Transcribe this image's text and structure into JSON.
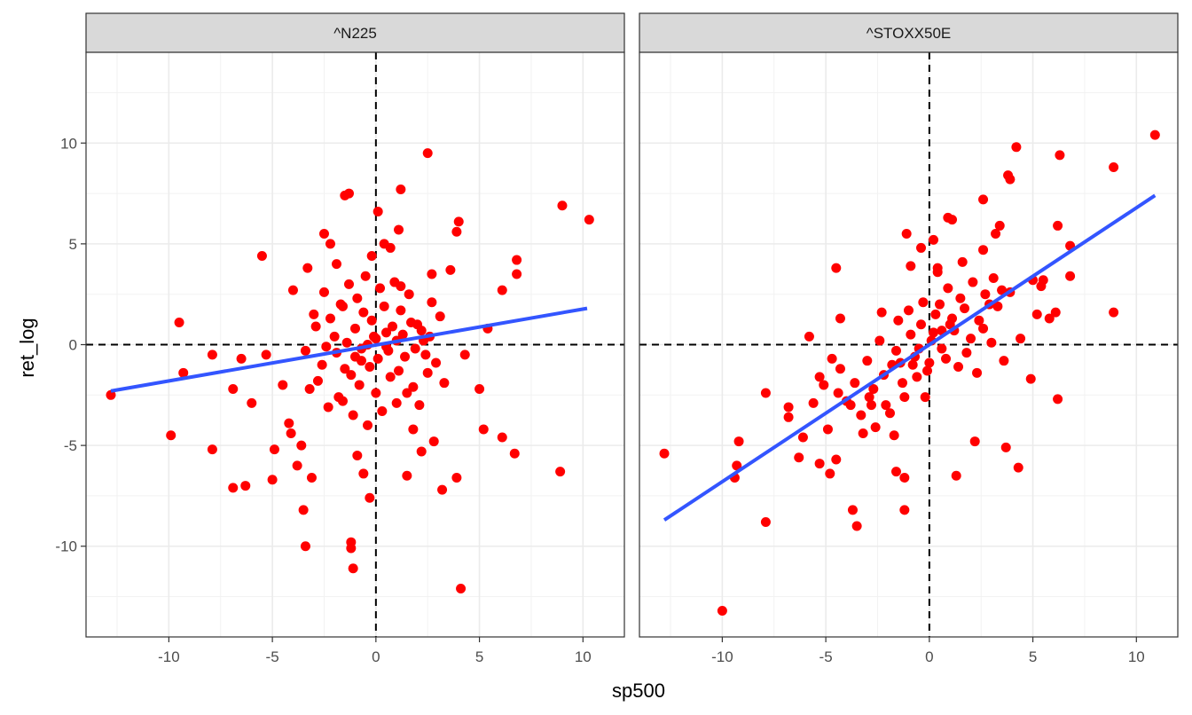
{
  "chart_data": {
    "type": "scatter",
    "title": "",
    "xlabel": "sp500",
    "ylabel": "ret_log",
    "xlim": [
      -14,
      12
    ],
    "ylim": [
      -14.5,
      14.5
    ],
    "x_ticks": [
      -10,
      -5,
      0,
      5,
      10
    ],
    "y_ticks": [
      -10,
      -5,
      0,
      5,
      10
    ],
    "x_tick_labels": [
      "-10",
      "-5",
      "0",
      "5",
      "10"
    ],
    "y_tick_labels": [
      "-10",
      "-5",
      "0",
      "5",
      "10"
    ],
    "grid": true,
    "reference_lines": {
      "x": 0,
      "y": 0,
      "style": "dashed"
    },
    "colors": {
      "points": "#ff0000",
      "fit": "#3355ff",
      "strip": "#d9d9d9",
      "grid": "#ebebeb"
    },
    "panels": [
      {
        "name": "^N225",
        "fit_line": [
          [
            -12.8,
            -2.3
          ],
          [
            10.2,
            1.8
          ]
        ],
        "points": [
          [
            -12.8,
            -2.5
          ],
          [
            -9.9,
            -4.5
          ],
          [
            -9.5,
            1.1
          ],
          [
            -9.3,
            -1.4
          ],
          [
            -7.9,
            -0.5
          ],
          [
            -7.9,
            -5.2
          ],
          [
            -6.9,
            -2.2
          ],
          [
            -6.9,
            -7.1
          ],
          [
            -6.5,
            -0.7
          ],
          [
            -6.3,
            -7.0
          ],
          [
            -6.0,
            -2.9
          ],
          [
            -5.5,
            4.4
          ],
          [
            -5.3,
            -0.5
          ],
          [
            -5.0,
            -6.7
          ],
          [
            -4.9,
            -5.2
          ],
          [
            -4.5,
            -2.0
          ],
          [
            -4.2,
            -3.9
          ],
          [
            -4.1,
            -4.4
          ],
          [
            -4.0,
            2.7
          ],
          [
            -3.8,
            -6.0
          ],
          [
            -3.6,
            -5.0
          ],
          [
            -3.5,
            -8.2
          ],
          [
            -3.4,
            -10.0
          ],
          [
            -3.3,
            3.8
          ],
          [
            -3.1,
            -6.6
          ],
          [
            -2.5,
            5.5
          ],
          [
            -2.2,
            5.0
          ],
          [
            -1.9,
            4.0
          ],
          [
            -1.5,
            7.4
          ],
          [
            -1.3,
            7.5
          ],
          [
            -1.2,
            -10.1
          ],
          [
            -1.2,
            -9.8
          ],
          [
            -1.1,
            -11.1
          ],
          [
            -0.9,
            -5.5
          ],
          [
            -0.6,
            -6.4
          ],
          [
            -0.3,
            -7.6
          ],
          [
            -0.2,
            4.4
          ],
          [
            0.1,
            6.6
          ],
          [
            0.4,
            5.0
          ],
          [
            0.7,
            4.8
          ],
          [
            1.1,
            5.7
          ],
          [
            1.2,
            7.7
          ],
          [
            1.5,
            -6.5
          ],
          [
            1.8,
            -4.2
          ],
          [
            2.2,
            -5.3
          ],
          [
            2.5,
            9.5
          ],
          [
            2.7,
            3.5
          ],
          [
            2.8,
            -4.8
          ],
          [
            3.2,
            -7.2
          ],
          [
            3.6,
            3.7
          ],
          [
            3.9,
            5.6
          ],
          [
            3.9,
            -6.6
          ],
          [
            4.0,
            6.1
          ],
          [
            4.1,
            -12.1
          ],
          [
            4.3,
            -0.5
          ],
          [
            5.0,
            -2.2
          ],
          [
            5.2,
            -4.2
          ],
          [
            5.4,
            0.8
          ],
          [
            6.1,
            -4.6
          ],
          [
            6.1,
            2.7
          ],
          [
            6.7,
            -5.4
          ],
          [
            6.8,
            4.2
          ],
          [
            6.8,
            3.5
          ],
          [
            8.9,
            -6.3
          ],
          [
            9.0,
            6.9
          ],
          [
            10.3,
            6.2
          ],
          [
            -3.0,
            1.5
          ],
          [
            -2.8,
            -1.8
          ],
          [
            -2.5,
            2.6
          ],
          [
            -2.3,
            -3.1
          ],
          [
            -2.0,
            0.4
          ],
          [
            -1.8,
            -2.6
          ],
          [
            -1.6,
            1.9
          ],
          [
            -1.5,
            -1.2
          ],
          [
            -1.3,
            3.0
          ],
          [
            -1.1,
            -3.5
          ],
          [
            -0.9,
            2.3
          ],
          [
            -0.7,
            -0.8
          ],
          [
            -0.5,
            3.4
          ],
          [
            -0.4,
            -4.0
          ],
          [
            -0.2,
            1.2
          ],
          [
            0.0,
            -2.4
          ],
          [
            0.2,
            2.8
          ],
          [
            0.3,
            -3.3
          ],
          [
            0.5,
            0.6
          ],
          [
            0.7,
            -1.6
          ],
          [
            0.9,
            3.1
          ],
          [
            1.0,
            -2.9
          ],
          [
            1.2,
            1.7
          ],
          [
            1.4,
            -0.6
          ],
          [
            1.6,
            2.5
          ],
          [
            1.8,
            -2.1
          ],
          [
            2.0,
            1.0
          ],
          [
            2.1,
            -3.0
          ],
          [
            2.3,
            0.2
          ],
          [
            2.5,
            -1.4
          ],
          [
            2.7,
            2.1
          ],
          [
            2.9,
            -0.9
          ],
          [
            3.1,
            1.4
          ],
          [
            3.3,
            -1.9
          ],
          [
            -3.4,
            -0.3
          ],
          [
            -3.2,
            -2.2
          ],
          [
            -2.9,
            0.9
          ],
          [
            -2.6,
            -1.0
          ],
          [
            -2.2,
            1.3
          ],
          [
            -1.9,
            -0.4
          ],
          [
            -1.7,
            2.0
          ],
          [
            -1.4,
            0.1
          ],
          [
            -1.2,
            -1.5
          ],
          [
            -1.0,
            0.8
          ],
          [
            -0.8,
            -2.0
          ],
          [
            -0.6,
            1.6
          ],
          [
            -0.3,
            -1.1
          ],
          [
            -0.1,
            0.4
          ],
          [
            0.1,
            -0.7
          ],
          [
            0.4,
            1.9
          ],
          [
            0.6,
            -0.3
          ],
          [
            0.8,
            0.9
          ],
          [
            1.1,
            -1.3
          ],
          [
            1.3,
            0.5
          ],
          [
            1.5,
            -2.4
          ],
          [
            1.7,
            1.1
          ],
          [
            1.9,
            -0.2
          ],
          [
            2.2,
            0.7
          ],
          [
            2.4,
            -0.5
          ],
          [
            -0.4,
            0.0
          ],
          [
            0.0,
            0.3
          ],
          [
            -0.7,
            -0.2
          ],
          [
            0.5,
            -0.1
          ],
          [
            -1.0,
            -0.6
          ],
          [
            1.0,
            0.2
          ],
          [
            -2.4,
            -0.1
          ],
          [
            2.6,
            0.4
          ],
          [
            -1.6,
            -2.8
          ],
          [
            1.2,
            2.9
          ]
        ]
      },
      {
        "name": "^STOXX50E",
        "fit_line": [
          [
            -12.8,
            -8.7
          ],
          [
            10.9,
            7.4
          ]
        ],
        "points": [
          [
            -12.8,
            -5.4
          ],
          [
            -10.0,
            -13.2
          ],
          [
            -9.4,
            -6.6
          ],
          [
            -9.3,
            -6.0
          ],
          [
            -9.2,
            -4.8
          ],
          [
            -7.9,
            -8.8
          ],
          [
            -7.9,
            -2.4
          ],
          [
            -6.8,
            -3.1
          ],
          [
            -6.8,
            -3.6
          ],
          [
            -6.3,
            -5.6
          ],
          [
            -6.1,
            -4.6
          ],
          [
            -5.8,
            0.4
          ],
          [
            -5.6,
            -2.9
          ],
          [
            -5.3,
            -1.6
          ],
          [
            -5.3,
            -5.9
          ],
          [
            -5.1,
            -2.0
          ],
          [
            -4.9,
            -4.2
          ],
          [
            -4.8,
            -6.4
          ],
          [
            -4.7,
            -0.7
          ],
          [
            -4.5,
            -5.7
          ],
          [
            -4.5,
            3.8
          ],
          [
            -4.4,
            -2.4
          ],
          [
            -4.3,
            -1.2
          ],
          [
            -4.3,
            1.3
          ],
          [
            -3.7,
            -8.2
          ],
          [
            -3.5,
            -9.0
          ],
          [
            -3.2,
            -4.4
          ],
          [
            -2.8,
            -3.0
          ],
          [
            -2.3,
            1.6
          ],
          [
            -1.6,
            -6.3
          ],
          [
            -1.2,
            -6.6
          ],
          [
            -1.2,
            -8.2
          ],
          [
            -1.1,
            5.5
          ],
          [
            -0.9,
            3.9
          ],
          [
            -0.4,
            4.8
          ],
          [
            0.2,
            5.2
          ],
          [
            0.4,
            3.6
          ],
          [
            0.9,
            6.3
          ],
          [
            1.1,
            6.2
          ],
          [
            1.3,
            -6.5
          ],
          [
            2.2,
            -4.8
          ],
          [
            2.6,
            7.2
          ],
          [
            2.6,
            4.7
          ],
          [
            3.1,
            3.3
          ],
          [
            3.2,
            5.5
          ],
          [
            3.4,
            5.9
          ],
          [
            3.7,
            -5.1
          ],
          [
            3.8,
            8.4
          ],
          [
            3.9,
            8.2
          ],
          [
            4.2,
            9.8
          ],
          [
            4.3,
            -6.1
          ],
          [
            4.4,
            0.3
          ],
          [
            4.9,
            -1.7
          ],
          [
            5.0,
            3.2
          ],
          [
            5.2,
            1.5
          ],
          [
            5.4,
            2.9
          ],
          [
            5.5,
            3.2
          ],
          [
            5.8,
            1.3
          ],
          [
            6.1,
            1.6
          ],
          [
            6.2,
            -2.7
          ],
          [
            6.2,
            5.9
          ],
          [
            6.3,
            9.4
          ],
          [
            6.8,
            4.9
          ],
          [
            6.8,
            3.4
          ],
          [
            8.9,
            1.6
          ],
          [
            8.9,
            8.8
          ],
          [
            10.9,
            10.4
          ],
          [
            -4.0,
            -2.8
          ],
          [
            -3.6,
            -1.9
          ],
          [
            -3.3,
            -3.5
          ],
          [
            -3.0,
            -0.8
          ],
          [
            -2.7,
            -2.2
          ],
          [
            -2.4,
            0.2
          ],
          [
            -2.1,
            -3.0
          ],
          [
            -1.8,
            -1.0
          ],
          [
            -1.5,
            1.2
          ],
          [
            -1.2,
            -2.6
          ],
          [
            -0.9,
            0.5
          ],
          [
            -0.6,
            -1.6
          ],
          [
            -0.3,
            2.1
          ],
          [
            0.0,
            -0.9
          ],
          [
            0.3,
            1.5
          ],
          [
            0.6,
            -0.2
          ],
          [
            0.9,
            2.8
          ],
          [
            1.2,
            0.7
          ],
          [
            1.5,
            2.3
          ],
          [
            1.8,
            -0.4
          ],
          [
            2.1,
            3.1
          ],
          [
            2.4,
            1.2
          ],
          [
            2.7,
            2.5
          ],
          [
            3.0,
            0.1
          ],
          [
            3.3,
            1.9
          ],
          [
            3.6,
            -0.8
          ],
          [
            3.9,
            2.6
          ],
          [
            -2.6,
            -4.1
          ],
          [
            -2.2,
            -1.5
          ],
          [
            -1.9,
            -3.4
          ],
          [
            -1.6,
            -0.3
          ],
          [
            -1.3,
            -1.9
          ],
          [
            -1.0,
            1.7
          ],
          [
            -0.7,
            -0.6
          ],
          [
            -0.4,
            1.0
          ],
          [
            -0.1,
            -1.3
          ],
          [
            0.2,
            0.6
          ],
          [
            0.5,
            2.0
          ],
          [
            0.8,
            -0.7
          ],
          [
            1.1,
            1.3
          ],
          [
            1.4,
            -1.1
          ],
          [
            1.7,
            1.8
          ],
          [
            2.0,
            0.3
          ],
          [
            2.3,
            -1.4
          ],
          [
            2.6,
            0.8
          ],
          [
            -0.5,
            -0.2
          ],
          [
            0.1,
            0.2
          ],
          [
            -0.8,
            -1.0
          ],
          [
            0.6,
            0.7
          ],
          [
            -1.4,
            -0.9
          ],
          [
            1.0,
            1.0
          ],
          [
            -2.9,
            -2.6
          ],
          [
            2.9,
            2.0
          ],
          [
            -3.8,
            -3.0
          ],
          [
            3.5,
            2.7
          ],
          [
            -0.2,
            -2.6
          ],
          [
            0.4,
            3.8
          ],
          [
            -1.7,
            -4.5
          ],
          [
            1.6,
            4.1
          ]
        ]
      }
    ]
  }
}
